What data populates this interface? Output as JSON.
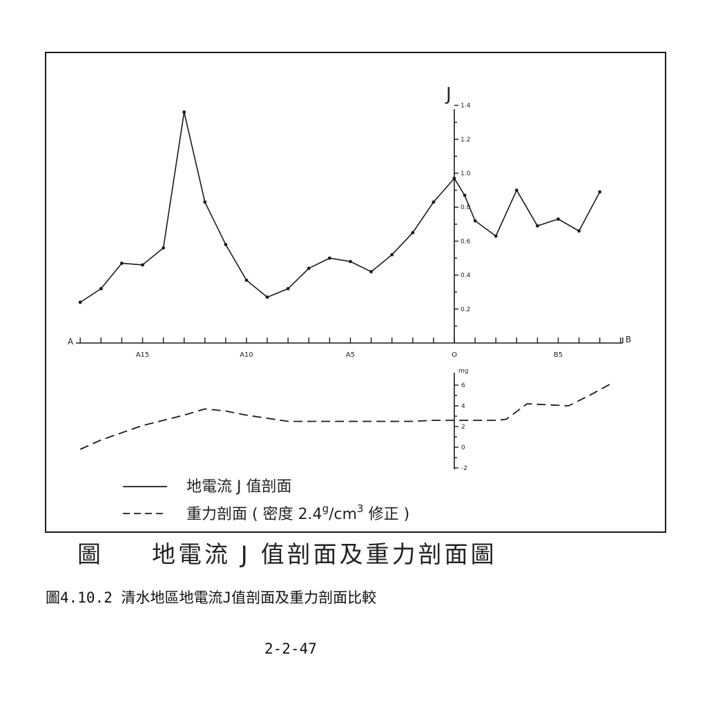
{
  "chart_data": {
    "type": "line",
    "profile_end_labels": {
      "start": "A",
      "end": "B"
    },
    "station_labels": [
      {
        "label": "A15",
        "station": -15
      },
      {
        "label": "A10",
        "station": -10
      },
      {
        "label": "A5",
        "station": -5
      },
      {
        "label": "O",
        "station": 0
      },
      {
        "label": "B5",
        "station": 5
      }
    ],
    "station_ticks": [
      -18,
      -17,
      -16,
      -15,
      -14,
      -13,
      -12,
      -11,
      -10,
      -9,
      -8,
      -7,
      -6,
      -5,
      -4,
      -3,
      -2,
      -1,
      0,
      1,
      2,
      3,
      4,
      5,
      6,
      7,
      8
    ],
    "j_axis": {
      "label": "J",
      "ylim": [
        0,
        1.4
      ],
      "ticks": [
        {
          "value": 0.2,
          "label": "0.2"
        },
        {
          "value": 0.4,
          "label": "0.4"
        },
        {
          "value": 0.6,
          "label": "0.6"
        },
        {
          "value": 0.8,
          "label": "0.8"
        },
        {
          "value": 1.0,
          "label": "1.0"
        },
        {
          "value": 1.2,
          "label": "1.2"
        },
        {
          "value": 1.4,
          "label": "1.4"
        }
      ],
      "minor_ticks": [
        0.1,
        0.3,
        0.5,
        0.7,
        0.9,
        1.1,
        1.3
      ]
    },
    "gravity_axis": {
      "label": "mg",
      "ylim": [
        -2,
        6
      ],
      "ticks": [
        {
          "value": -2,
          "label": "-2"
        },
        {
          "value": 0,
          "label": "0"
        },
        {
          "value": 2,
          "label": "2"
        },
        {
          "value": 4,
          "label": "4"
        },
        {
          "value": 6,
          "label": "6"
        }
      ],
      "minor_ticks": [
        -1,
        1,
        3,
        5
      ]
    },
    "series": [
      {
        "name": "地電流 J 值剖面",
        "style": "solid-with-points",
        "x": [
          -18,
          -17,
          -16,
          -15,
          -14,
          -13,
          -12,
          -11,
          -10,
          -9,
          -8,
          -7,
          -6,
          -5,
          -4,
          -3,
          -2,
          -1,
          0,
          0.5,
          1,
          2,
          3,
          4,
          5,
          6,
          7
        ],
        "y": [
          0.24,
          0.32,
          0.47,
          0.46,
          0.56,
          1.36,
          0.83,
          0.58,
          0.37,
          0.27,
          0.32,
          0.44,
          0.5,
          0.48,
          0.42,
          0.52,
          0.65,
          0.83,
          0.97,
          0.87,
          0.72,
          0.63,
          0.9,
          0.69,
          0.73,
          0.66,
          0.89
        ]
      },
      {
        "name": "重力剖面 ( 密度 2.4g/cm3 修正 )",
        "style": "dashed",
        "x": [
          -18,
          -17,
          -15,
          -13,
          -12,
          -11,
          -10,
          -9,
          -8,
          -7,
          -6,
          -5,
          -4,
          -3,
          -2,
          -1,
          0,
          1,
          2,
          2.5,
          3.5,
          4.5,
          5.5,
          6.5,
          7.5
        ],
        "y": [
          -0.2,
          0.7,
          2.1,
          3.1,
          3.7,
          3.5,
          3.1,
          2.8,
          2.5,
          2.5,
          2.5,
          2.5,
          2.5,
          2.5,
          2.5,
          2.6,
          2.6,
          2.6,
          2.6,
          2.7,
          4.2,
          4.1,
          4.0,
          5.0,
          6.1
        ]
      }
    ],
    "legend": {
      "placement": "bottom-left",
      "entries": [
        {
          "label": "地電流 J 值剖面",
          "style": "solid"
        },
        {
          "label_main": "重力剖面 ( 密度 2.4",
          "label_sup": "g",
          "label_mid": "/cm",
          "label_sup2": "3",
          "label_end": " 修正 )",
          "style": "dashed"
        }
      ]
    },
    "grid": false
  },
  "caption": {
    "figure_prefix": "圖",
    "figure_title": "地電流 J 值剖面及重力剖面圖",
    "figure_caption": "圖4.10.2 清水地區地電流J值剖面及重力剖面比較"
  },
  "page_number": "2-2-47"
}
